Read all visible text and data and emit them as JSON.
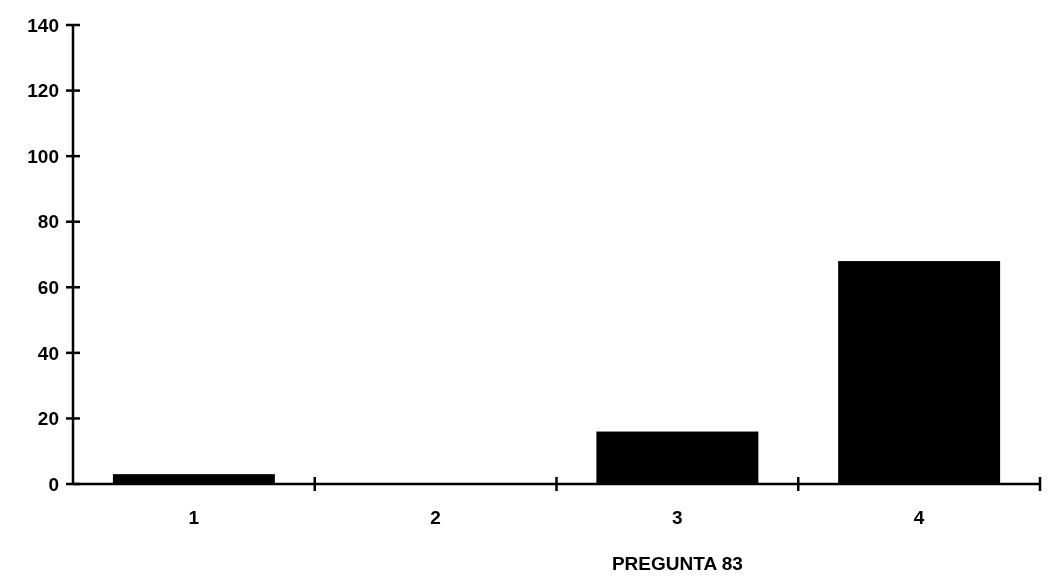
{
  "chart_data": {
    "type": "bar",
    "categories": [
      "1",
      "2",
      "3",
      "4"
    ],
    "values": [
      3,
      0,
      16,
      68
    ],
    "color": "#000000",
    "xlabel": "PREGUNTA 83",
    "ylim": [
      0,
      140
    ],
    "yticks": [
      0,
      20,
      40,
      60,
      80,
      100,
      120,
      140
    ],
    "grid": false
  }
}
